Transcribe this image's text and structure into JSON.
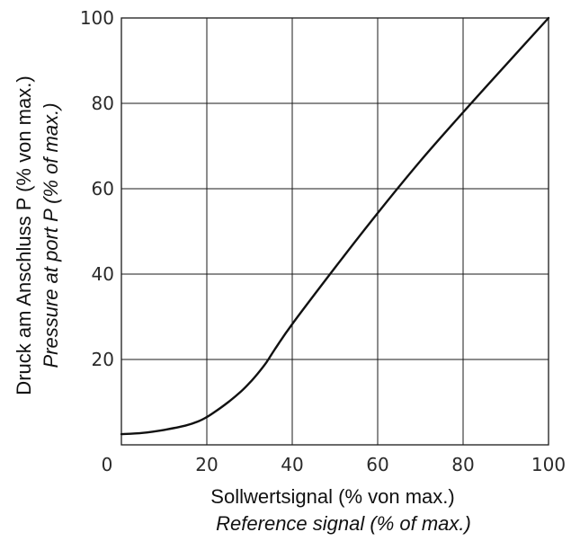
{
  "chart_data": {
    "type": "line",
    "xlabel": "Sollwertsignal (% von max.)",
    "xlabel_secondary": "Reference signal (% of max.)",
    "ylabel": "Druck am Anschluss P (% von max.)",
    "ylabel_secondary": "Pressure at port P (% of max.)",
    "xlim": [
      0,
      100
    ],
    "ylim": [
      0,
      100
    ],
    "x_ticks": [
      0,
      20,
      40,
      60,
      80,
      100
    ],
    "y_ticks": [
      20,
      40,
      60,
      80,
      100
    ],
    "x_tick_labels": [
      "0",
      "20",
      "40",
      "60",
      "80",
      "100"
    ],
    "y_tick_labels": [
      "20",
      "40",
      "60",
      "80",
      "100"
    ],
    "grid": true,
    "series": [
      {
        "x": [
          0,
          5,
          10,
          15,
          18,
          20,
          22,
          25,
          28,
          30,
          32,
          34,
          36,
          40,
          50,
          60,
          70,
          80,
          90,
          100
        ],
        "y": [
          2.5,
          2.8,
          3.5,
          4.5,
          5.5,
          6.5,
          7.8,
          10,
          12.5,
          14.5,
          16.8,
          19.4,
          22.5,
          28.3,
          41.5,
          54.3,
          66.5,
          77.9,
          89,
          100
        ]
      }
    ]
  }
}
